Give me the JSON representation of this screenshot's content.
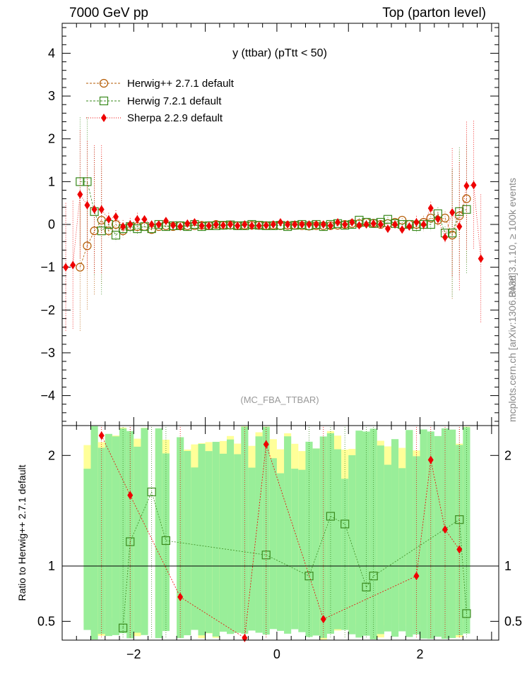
{
  "header": {
    "left": "7000 GeV pp",
    "right": "Top (parton level)"
  },
  "side_labels": {
    "upper": "Rivet 3.1.10, ≥ 100k events",
    "lower": "mcplots.cern.ch [arXiv:1306.3436]"
  },
  "colors": {
    "herwigpp": "#b35900",
    "herwig7": "#3a8a1e",
    "sherpa": "#ee0000",
    "band_green": "#99ee99",
    "band_yellow": "#ffff99"
  },
  "chart_data": [
    {
      "type": "scatter",
      "title": "y (ttbar) (pTtt < 50)",
      "watermark": "(MC_FBA_TTBAR)",
      "xlim": [
        -3.0,
        3.1
      ],
      "ylim": [
        -4.7,
        4.7
      ],
      "yticks": [
        -4,
        -3,
        -2,
        -1,
        0,
        1,
        2,
        3,
        4
      ],
      "ytick_labels": [
        "−4",
        "−3",
        "−2",
        "−1",
        "0",
        "1",
        "2",
        "3",
        "4"
      ],
      "legend": [
        "Herwig++ 2.7.1 default",
        "Herwig 7.2.1 default",
        "Sherpa 2.2.9 default"
      ],
      "series": [
        {
          "name": "Herwig++ 2.7.1 default",
          "marker": "circle",
          "points": [
            [
              -2.75,
              -1.0
            ],
            [
              -2.65,
              -0.5
            ],
            [
              -2.55,
              -0.15
            ],
            [
              -2.45,
              0.1
            ],
            [
              -2.35,
              -0.15
            ],
            [
              -2.25,
              0.0
            ],
            [
              -2.15,
              -0.15
            ],
            [
              -2.05,
              -0.05
            ],
            [
              -1.95,
              -0.05
            ],
            [
              -1.85,
              -0.05
            ],
            [
              -1.75,
              -0.12
            ],
            [
              -1.65,
              -0.05
            ],
            [
              -1.55,
              -0.03
            ],
            [
              -1.45,
              -0.05
            ],
            [
              -1.35,
              -0.03
            ],
            [
              -1.25,
              -0.03
            ],
            [
              -1.15,
              -0.03
            ],
            [
              -1.05,
              -0.02
            ],
            [
              -0.95,
              -0.03
            ],
            [
              -0.85,
              0.0
            ],
            [
              -0.75,
              -0.02
            ],
            [
              -0.65,
              -0.02
            ],
            [
              -0.55,
              -0.03
            ],
            [
              -0.45,
              -0.02
            ],
            [
              -0.35,
              -0.02
            ],
            [
              -0.25,
              -0.02
            ],
            [
              -0.15,
              -0.03
            ],
            [
              -0.05,
              -0.02
            ],
            [
              0.05,
              -0.03
            ],
            [
              0.15,
              -0.02
            ],
            [
              0.25,
              -0.02
            ],
            [
              0.35,
              -0.03
            ],
            [
              0.45,
              -0.04
            ],
            [
              0.55,
              -0.03
            ],
            [
              0.65,
              -0.03
            ],
            [
              0.75,
              -0.03
            ],
            [
              0.85,
              -0.02
            ],
            [
              0.95,
              0.0
            ],
            [
              1.05,
              0.02
            ],
            [
              1.15,
              0.02
            ],
            [
              1.25,
              0.05
            ],
            [
              1.35,
              0.03
            ],
            [
              1.45,
              0.0
            ],
            [
              1.55,
              0.02
            ],
            [
              1.65,
              0.05
            ],
            [
              1.75,
              0.1
            ],
            [
              1.85,
              0.0
            ],
            [
              1.95,
              0.0
            ],
            [
              2.05,
              0.05
            ],
            [
              2.15,
              0.15
            ],
            [
              2.25,
              0.1
            ],
            [
              2.35,
              0.15
            ],
            [
              2.45,
              -0.25
            ],
            [
              2.55,
              0.2
            ],
            [
              2.65,
              0.6
            ]
          ]
        },
        {
          "name": "Herwig 7.2.1 default",
          "marker": "square",
          "points": [
            [
              -2.75,
              1.0
            ],
            [
              -2.65,
              1.0
            ],
            [
              -2.55,
              0.3
            ],
            [
              -2.45,
              -0.15
            ],
            [
              -2.35,
              0.0
            ],
            [
              -2.25,
              -0.25
            ],
            [
              -2.15,
              -0.1
            ],
            [
              -2.05,
              -0.05
            ],
            [
              -1.95,
              -0.1
            ],
            [
              -1.85,
              -0.05
            ],
            [
              -1.75,
              -0.1
            ],
            [
              -1.65,
              0.0
            ],
            [
              -1.55,
              -0.05
            ],
            [
              -1.45,
              -0.03
            ],
            [
              -1.35,
              -0.03
            ],
            [
              -1.25,
              -0.05
            ],
            [
              -1.15,
              0.0
            ],
            [
              -1.05,
              -0.05
            ],
            [
              -0.95,
              -0.03
            ],
            [
              -0.85,
              -0.03
            ],
            [
              -0.75,
              -0.02
            ],
            [
              -0.65,
              -0.01
            ],
            [
              -0.55,
              -0.03
            ],
            [
              -0.45,
              -0.03
            ],
            [
              -0.35,
              0.0
            ],
            [
              -0.25,
              -0.02
            ],
            [
              -0.15,
              -0.03
            ],
            [
              -0.05,
              -0.03
            ],
            [
              0.05,
              -0.02
            ],
            [
              0.15,
              -0.05
            ],
            [
              0.25,
              -0.02
            ],
            [
              0.35,
              0.0
            ],
            [
              0.45,
              -0.03
            ],
            [
              0.55,
              0.0
            ],
            [
              0.65,
              -0.05
            ],
            [
              0.75,
              0.0
            ],
            [
              0.85,
              0.02
            ],
            [
              0.95,
              -0.02
            ],
            [
              1.05,
              0.0
            ],
            [
              1.15,
              0.1
            ],
            [
              1.25,
              0.05
            ],
            [
              1.35,
              0.02
            ],
            [
              1.45,
              0.05
            ],
            [
              1.55,
              0.12
            ],
            [
              1.65,
              0.02
            ],
            [
              1.75,
              0.0
            ],
            [
              1.85,
              0.0
            ],
            [
              1.95,
              -0.05
            ],
            [
              2.05,
              0.0
            ],
            [
              2.15,
              0.0
            ],
            [
              2.25,
              0.25
            ],
            [
              2.35,
              -0.2
            ],
            [
              2.45,
              -0.2
            ],
            [
              2.55,
              0.3
            ],
            [
              2.65,
              0.35
            ]
          ]
        },
        {
          "name": "Sherpa 2.2.9 default",
          "marker": "diamond",
          "points": [
            [
              -2.95,
              -1.0
            ],
            [
              -2.85,
              -0.95
            ],
            [
              -2.75,
              0.7
            ],
            [
              -2.65,
              0.45
            ],
            [
              -2.55,
              0.35
            ],
            [
              -2.45,
              0.35
            ],
            [
              -2.35,
              0.12
            ],
            [
              -2.25,
              0.18
            ],
            [
              -2.15,
              -0.05
            ],
            [
              -2.05,
              0.0
            ],
            [
              -1.95,
              0.12
            ],
            [
              -1.85,
              0.12
            ],
            [
              -1.75,
              0.0
            ],
            [
              -1.65,
              0.0
            ],
            [
              -1.55,
              0.08
            ],
            [
              -1.45,
              -0.02
            ],
            [
              -1.35,
              -0.05
            ],
            [
              -1.25,
              0.02
            ],
            [
              -1.15,
              0.05
            ],
            [
              -1.05,
              -0.03
            ],
            [
              -0.95,
              -0.03
            ],
            [
              -0.85,
              0.0
            ],
            [
              -0.75,
              -0.02
            ],
            [
              -0.65,
              0.0
            ],
            [
              -0.55,
              -0.03
            ],
            [
              -0.45,
              0.0
            ],
            [
              -0.35,
              -0.03
            ],
            [
              -0.25,
              -0.03
            ],
            [
              -0.15,
              -0.02
            ],
            [
              -0.05,
              0.0
            ],
            [
              0.05,
              0.05
            ],
            [
              0.15,
              0.0
            ],
            [
              0.25,
              0.0
            ],
            [
              0.35,
              0.0
            ],
            [
              0.45,
              0.0
            ],
            [
              0.55,
              0.0
            ],
            [
              0.65,
              0.0
            ],
            [
              0.75,
              -0.03
            ],
            [
              0.85,
              0.05
            ],
            [
              0.95,
              0.0
            ],
            [
              1.05,
              0.05
            ],
            [
              1.15,
              -0.02
            ],
            [
              1.25,
              0.0
            ],
            [
              1.35,
              0.02
            ],
            [
              1.45,
              0.0
            ],
            [
              1.55,
              -0.1
            ],
            [
              1.65,
              0.0
            ],
            [
              1.75,
              -0.12
            ],
            [
              1.85,
              -0.05
            ],
            [
              1.95,
              0.05
            ],
            [
              2.05,
              0.0
            ],
            [
              2.15,
              0.38
            ],
            [
              2.25,
              0.13
            ],
            [
              2.35,
              -0.3
            ],
            [
              2.45,
              0.28
            ],
            [
              2.55,
              -0.05
            ],
            [
              2.65,
              0.9
            ],
            [
              2.75,
              0.92
            ],
            [
              2.85,
              -0.8
            ]
          ]
        }
      ]
    },
    {
      "type": "scatter",
      "ylabel": "Ratio to Herwig++ 2.7.1 default",
      "xlim": [
        -3.0,
        3.1
      ],
      "ylim": [
        0.33,
        2.27
      ],
      "yticks": [
        0.5,
        1,
        2
      ],
      "ytick_labels": [
        "0.5",
        "1",
        "2"
      ],
      "xticks": [
        -2,
        0,
        2
      ],
      "xtick_labels": [
        "−2",
        "0",
        "2"
      ],
      "reference": 1.0,
      "series": [
        {
          "name": "Herwig 7.2.1 default",
          "marker": "square",
          "points": [
            [
              -2.15,
              0.44
            ],
            [
              -2.05,
              1.22
            ],
            [
              -1.75,
              1.67
            ],
            [
              -1.55,
              1.23
            ],
            [
              -0.15,
              1.1
            ],
            [
              0.45,
              0.91
            ],
            [
              0.75,
              1.45
            ],
            [
              0.95,
              1.38
            ],
            [
              1.25,
              0.81
            ],
            [
              1.35,
              0.91
            ],
            [
              2.55,
              1.42
            ],
            [
              2.65,
              0.57
            ]
          ]
        },
        {
          "name": "Sherpa 2.2.9 default",
          "marker": "diamond",
          "points": [
            [
              -2.45,
              2.18
            ],
            [
              -2.05,
              1.64
            ],
            [
              -1.35,
              0.72
            ],
            [
              -0.45,
              0.35
            ],
            [
              -0.15,
              2.1
            ],
            [
              0.65,
              0.52
            ],
            [
              1.95,
              0.91
            ],
            [
              2.15,
              1.96
            ],
            [
              2.35,
              1.33
            ],
            [
              2.55,
              1.15
            ]
          ]
        }
      ]
    }
  ]
}
